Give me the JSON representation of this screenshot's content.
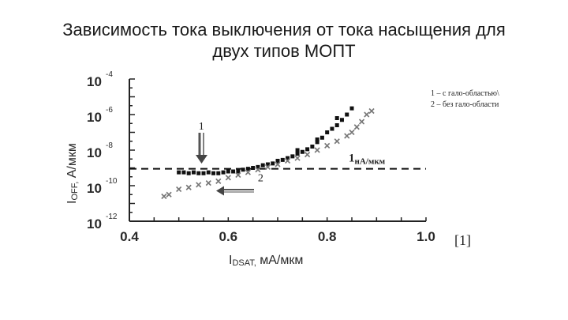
{
  "title": {
    "line1": "Зависимость тока выключения от тока насыщения для",
    "line2": "двух типов МОПТ"
  },
  "citation": "[1]",
  "chart_data": {
    "type": "scatter",
    "xlabel_main": "I",
    "xlabel_sub": "DSAT,",
    "xlabel_rest": " мА/мкм",
    "ylabel_main": "I",
    "ylabel_sub": "OFF,",
    "ylabel_rest": " А/мкм",
    "xlim": [
      0.4,
      1.0
    ],
    "ylim_log10": [
      -12,
      -4
    ],
    "x_ticks": [
      "0.4",
      "0.6",
      "0.8",
      "1.0"
    ],
    "y_ticks": [
      {
        "base": "10",
        "exp": "-4"
      },
      {
        "base": "10",
        "exp": "-6"
      },
      {
        "base": "10",
        "exp": "-8"
      },
      {
        "base": "10",
        "exp": "-10"
      },
      {
        "base": "10",
        "exp": "-12"
      }
    ],
    "legend": [
      "1 – с гало-областью\\",
      "2 – без гало-области"
    ],
    "reference_line": {
      "value_log10": -9.05,
      "label_main": "1",
      "label_sub": "нА/мкм"
    },
    "annotations": [
      {
        "text": "1",
        "x": 0.54,
        "y_log10": -6.85
      },
      {
        "text": "2",
        "x": 0.66,
        "y_log10": -9.75
      }
    ],
    "series": [
      {
        "name": "1",
        "marker": "square",
        "points": [
          [
            0.5,
            -9.25
          ],
          [
            0.51,
            -9.25
          ],
          [
            0.52,
            -9.3
          ],
          [
            0.53,
            -9.25
          ],
          [
            0.54,
            -9.3
          ],
          [
            0.55,
            -9.3
          ],
          [
            0.56,
            -9.25
          ],
          [
            0.57,
            -9.3
          ],
          [
            0.58,
            -9.3
          ],
          [
            0.59,
            -9.25
          ],
          [
            0.6,
            -9.2
          ],
          [
            0.61,
            -9.2
          ],
          [
            0.62,
            -9.2
          ],
          [
            0.63,
            -9.1
          ],
          [
            0.64,
            -9.05
          ],
          [
            0.65,
            -9.0
          ],
          [
            0.66,
            -8.95
          ],
          [
            0.67,
            -8.85
          ],
          [
            0.68,
            -8.8
          ],
          [
            0.69,
            -8.75
          ],
          [
            0.7,
            -8.65
          ],
          [
            0.71,
            -8.55
          ],
          [
            0.72,
            -8.45
          ],
          [
            0.73,
            -8.35
          ],
          [
            0.74,
            -8.2
          ],
          [
            0.75,
            -8.1
          ],
          [
            0.76,
            -7.95
          ],
          [
            0.77,
            -7.8
          ],
          [
            0.78,
            -7.55
          ],
          [
            0.79,
            -7.3
          ],
          [
            0.8,
            -7.0
          ],
          [
            0.81,
            -6.8
          ],
          [
            0.82,
            -6.6
          ],
          [
            0.83,
            -6.3
          ],
          [
            0.84,
            -6.0
          ],
          [
            0.85,
            -5.65
          ],
          [
            0.82,
            -6.2
          ],
          [
            0.78,
            -7.4
          ],
          [
            0.74,
            -8.0
          ],
          [
            0.7,
            -8.6
          ]
        ]
      },
      {
        "name": "2",
        "marker": "cross",
        "points": [
          [
            0.47,
            -10.6
          ],
          [
            0.48,
            -10.5
          ],
          [
            0.5,
            -10.2
          ],
          [
            0.52,
            -10.1
          ],
          [
            0.54,
            -9.95
          ],
          [
            0.56,
            -9.85
          ],
          [
            0.58,
            -9.75
          ],
          [
            0.6,
            -9.55
          ],
          [
            0.62,
            -9.4
          ],
          [
            0.64,
            -9.25
          ],
          [
            0.66,
            -9.1
          ],
          [
            0.68,
            -8.95
          ],
          [
            0.7,
            -8.8
          ],
          [
            0.72,
            -8.6
          ],
          [
            0.74,
            -8.45
          ],
          [
            0.76,
            -8.25
          ],
          [
            0.78,
            -8.0
          ],
          [
            0.8,
            -7.75
          ],
          [
            0.82,
            -7.5
          ],
          [
            0.84,
            -7.2
          ],
          [
            0.85,
            -7.0
          ],
          [
            0.86,
            -6.7
          ],
          [
            0.87,
            -6.4
          ],
          [
            0.88,
            -6.0
          ],
          [
            0.89,
            -5.8
          ]
        ]
      }
    ]
  }
}
